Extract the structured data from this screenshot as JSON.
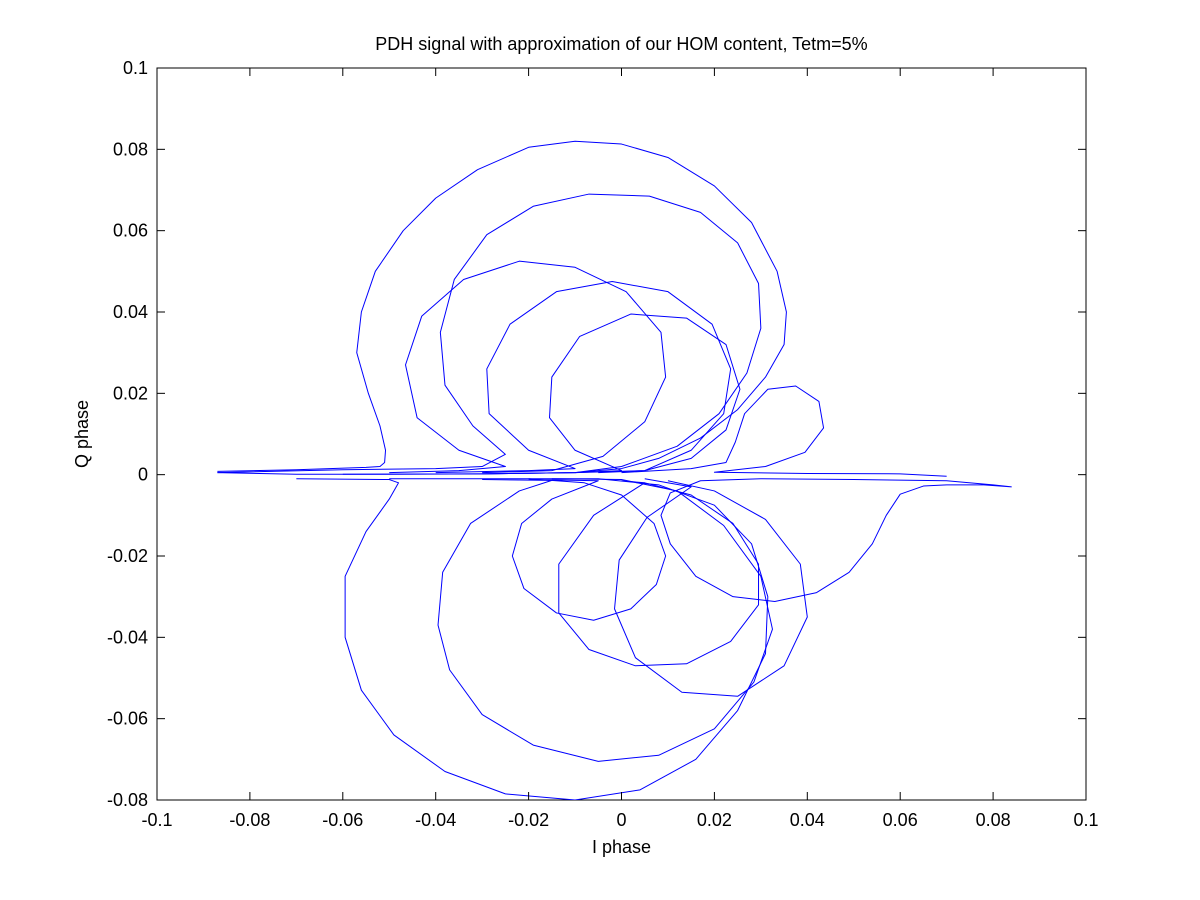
{
  "chart_data": {
    "type": "line",
    "title": "PDH signal with approximation of our HOM content,  Tetm=5%",
    "xlabel": "I phase",
    "ylabel": "Q phase",
    "xlim": [
      -0.1,
      0.1
    ],
    "ylim": [
      -0.08,
      0.1
    ],
    "xticks": [
      -0.1,
      -0.08,
      -0.06,
      -0.04,
      -0.02,
      0,
      0.02,
      0.04,
      0.06,
      0.08,
      0.1
    ],
    "yticks": [
      -0.08,
      -0.06,
      -0.04,
      -0.02,
      0,
      0.02,
      0.04,
      0.06,
      0.08,
      0.1
    ],
    "xtick_labels": [
      "-0.1",
      "-0.08",
      "-0.06",
      "-0.04",
      "-0.02",
      "0",
      "0.02",
      "0.04",
      "0.06",
      "0.08",
      "0.1"
    ],
    "ytick_labels": [
      "-0.08",
      "-0.06",
      "-0.04",
      "-0.02",
      "0",
      "0.02",
      "0.04",
      "0.06",
      "0.08",
      "0.1"
    ],
    "grid": false,
    "legend": "none",
    "line_color": "#0000ff",
    "series": [
      {
        "points": [
          [
            -0.087,
            0.0008
          ],
          [
            -0.07,
            0.0012
          ],
          [
            -0.055,
            0.0018
          ],
          [
            -0.052,
            0.002
          ],
          [
            -0.051,
            0.003
          ],
          [
            -0.0508,
            0.006
          ],
          [
            -0.052,
            0.012
          ],
          [
            -0.0545,
            0.02
          ],
          [
            -0.057,
            0.03
          ],
          [
            -0.056,
            0.04
          ],
          [
            -0.053,
            0.05
          ],
          [
            -0.047,
            0.06
          ],
          [
            -0.04,
            0.068
          ],
          [
            -0.031,
            0.075
          ],
          [
            -0.02,
            0.0805
          ],
          [
            -0.01,
            0.082
          ],
          [
            0.0,
            0.0813
          ],
          [
            0.01,
            0.078
          ],
          [
            0.02,
            0.071
          ],
          [
            0.028,
            0.062
          ],
          [
            0.0335,
            0.05
          ],
          [
            0.0355,
            0.04
          ],
          [
            0.035,
            0.032
          ],
          [
            0.031,
            0.024
          ],
          [
            0.025,
            0.016
          ],
          [
            0.017,
            0.009
          ],
          [
            0.008,
            0.004
          ],
          [
            0.0,
            0.0015
          ],
          [
            -0.01,
            0.0005
          ],
          [
            -0.03,
            0.0002
          ],
          [
            -0.05,
            0.0001
          ],
          [
            -0.07,
            0.0001
          ],
          [
            -0.087,
            0.0005
          ]
        ]
      },
      {
        "points": [
          [
            -0.087,
            0.0005
          ],
          [
            -0.06,
            0.0012
          ],
          [
            -0.04,
            0.0015
          ],
          [
            -0.03,
            0.002
          ],
          [
            -0.025,
            0.005
          ],
          [
            -0.032,
            0.012
          ],
          [
            -0.038,
            0.022
          ],
          [
            -0.039,
            0.035
          ],
          [
            -0.036,
            0.048
          ],
          [
            -0.029,
            0.059
          ],
          [
            -0.019,
            0.066
          ],
          [
            -0.007,
            0.069
          ],
          [
            0.006,
            0.0685
          ],
          [
            0.017,
            0.0645
          ],
          [
            0.025,
            0.057
          ],
          [
            0.0295,
            0.047
          ],
          [
            0.03,
            0.036
          ],
          [
            0.027,
            0.025
          ],
          [
            0.021,
            0.015
          ],
          [
            0.012,
            0.007
          ],
          [
            0.0,
            0.002
          ],
          [
            -0.01,
            0.0005
          ],
          [
            -0.03,
            0.0002
          ],
          [
            -0.06,
            0.0001
          ]
        ]
      },
      {
        "points": [
          [
            -0.05,
            0.0005
          ],
          [
            -0.035,
            0.001
          ],
          [
            -0.025,
            0.002
          ],
          [
            -0.035,
            0.006
          ],
          [
            -0.044,
            0.014
          ],
          [
            -0.0465,
            0.027
          ],
          [
            -0.043,
            0.039
          ],
          [
            -0.034,
            0.048
          ],
          [
            -0.022,
            0.0525
          ],
          [
            -0.01,
            0.051
          ],
          [
            0.001,
            0.045
          ],
          [
            0.0085,
            0.035
          ],
          [
            0.0095,
            0.024
          ],
          [
            0.005,
            0.013
          ],
          [
            -0.004,
            0.0045
          ],
          [
            -0.015,
            0.001
          ],
          [
            -0.03,
            0.0005
          ]
        ]
      },
      {
        "points": [
          [
            -0.04,
            0.0005
          ],
          [
            -0.02,
            0.001
          ],
          [
            -0.01,
            0.0015
          ],
          [
            -0.02,
            0.006
          ],
          [
            -0.0285,
            0.015
          ],
          [
            -0.029,
            0.026
          ],
          [
            -0.024,
            0.037
          ],
          [
            -0.014,
            0.045
          ],
          [
            -0.002,
            0.0475
          ],
          [
            0.01,
            0.045
          ],
          [
            0.0195,
            0.037
          ],
          [
            0.0235,
            0.026
          ],
          [
            0.022,
            0.015
          ],
          [
            0.015,
            0.006
          ],
          [
            0.005,
            0.001
          ],
          [
            -0.01,
            0.0005
          ],
          [
            -0.03,
            0.0002
          ]
        ]
      },
      {
        "points": [
          [
            -0.01,
            0.0005
          ],
          [
            0.0,
            0.001
          ],
          [
            -0.01,
            0.006
          ],
          [
            -0.0155,
            0.014
          ],
          [
            -0.015,
            0.024
          ],
          [
            -0.009,
            0.034
          ],
          [
            0.002,
            0.0395
          ],
          [
            0.014,
            0.0385
          ],
          [
            0.0225,
            0.032
          ],
          [
            0.0255,
            0.021
          ],
          [
            0.0225,
            0.011
          ],
          [
            0.015,
            0.004
          ],
          [
            0.005,
            0.001
          ],
          [
            -0.005,
            0.0005
          ]
        ]
      },
      {
        "points": [
          [
            0.0,
            0.0005
          ],
          [
            0.015,
            0.0015
          ],
          [
            0.0225,
            0.003
          ],
          [
            0.0245,
            0.008
          ],
          [
            0.0265,
            0.015
          ],
          [
            0.0315,
            0.021
          ],
          [
            0.0375,
            0.0218
          ],
          [
            0.0425,
            0.018
          ],
          [
            0.0435,
            0.0115
          ],
          [
            0.0395,
            0.0055
          ],
          [
            0.031,
            0.002
          ],
          [
            0.02,
            0.0006
          ],
          [
            0.04,
            0.0003
          ],
          [
            0.06,
            0.0002
          ],
          [
            0.07,
            -0.0004
          ]
        ]
      },
      {
        "points": [
          [
            0.084,
            -0.003
          ],
          [
            0.078,
            -0.0025
          ],
          [
            0.07,
            -0.0025
          ],
          [
            0.065,
            -0.0028
          ],
          [
            0.06,
            -0.0048
          ],
          [
            0.057,
            -0.01
          ],
          [
            0.054,
            -0.017
          ],
          [
            0.049,
            -0.024
          ],
          [
            0.042,
            -0.029
          ],
          [
            0.033,
            -0.0312
          ],
          [
            0.024,
            -0.03
          ],
          [
            0.016,
            -0.025
          ],
          [
            0.0105,
            -0.017
          ],
          [
            0.0085,
            -0.01
          ],
          [
            0.0105,
            -0.0045
          ],
          [
            0.017,
            -0.0015
          ],
          [
            0.03,
            -0.001
          ],
          [
            0.05,
            -0.0012
          ],
          [
            0.07,
            -0.0015
          ],
          [
            0.08,
            -0.0025
          ],
          [
            0.084,
            -0.003
          ]
        ]
      },
      {
        "points": [
          [
            -0.07,
            -0.001
          ],
          [
            -0.05,
            -0.0012
          ],
          [
            -0.048,
            -0.002
          ],
          [
            -0.05,
            -0.006
          ],
          [
            -0.055,
            -0.014
          ],
          [
            -0.0595,
            -0.025
          ],
          [
            -0.0595,
            -0.04
          ],
          [
            -0.056,
            -0.053
          ],
          [
            -0.049,
            -0.064
          ],
          [
            -0.038,
            -0.073
          ],
          [
            -0.025,
            -0.0785
          ],
          [
            -0.01,
            -0.08
          ],
          [
            0.004,
            -0.0775
          ],
          [
            0.016,
            -0.07
          ],
          [
            0.025,
            -0.058
          ],
          [
            0.031,
            -0.044
          ],
          [
            0.0315,
            -0.03
          ],
          [
            0.028,
            -0.017
          ],
          [
            0.02,
            -0.0075
          ],
          [
            0.008,
            -0.0025
          ],
          [
            -0.005,
            -0.001
          ],
          [
            -0.02,
            -0.001
          ],
          [
            -0.05,
            -0.001
          ]
        ]
      },
      {
        "points": [
          [
            -0.03,
            -0.0012
          ],
          [
            -0.015,
            -0.0014
          ],
          [
            -0.022,
            -0.004
          ],
          [
            -0.0325,
            -0.012
          ],
          [
            -0.0385,
            -0.024
          ],
          [
            -0.0395,
            -0.037
          ],
          [
            -0.037,
            -0.048
          ],
          [
            -0.03,
            -0.059
          ],
          [
            -0.019,
            -0.0665
          ],
          [
            -0.005,
            -0.0705
          ],
          [
            0.008,
            -0.069
          ],
          [
            0.02,
            -0.0625
          ],
          [
            0.0285,
            -0.051
          ],
          [
            0.0325,
            -0.038
          ],
          [
            0.03,
            -0.025
          ],
          [
            0.022,
            -0.0125
          ],
          [
            0.012,
            -0.004
          ],
          [
            0.0,
            -0.0012
          ],
          [
            -0.015,
            -0.001
          ]
        ]
      },
      {
        "points": [
          [
            -0.02,
            -0.0012
          ],
          [
            -0.005,
            -0.0015
          ],
          [
            -0.015,
            -0.006
          ],
          [
            -0.0215,
            -0.012
          ],
          [
            -0.0235,
            -0.02
          ],
          [
            -0.021,
            -0.028
          ],
          [
            -0.014,
            -0.034
          ],
          [
            -0.006,
            -0.0358
          ],
          [
            0.002,
            -0.033
          ],
          [
            0.0075,
            -0.027
          ],
          [
            0.0095,
            -0.02
          ],
          [
            0.007,
            -0.012
          ],
          [
            0.0,
            -0.005
          ],
          [
            -0.008,
            -0.002
          ],
          [
            -0.02,
            -0.001
          ]
        ]
      },
      {
        "points": [
          [
            0.0,
            -0.0015
          ],
          [
            0.005,
            -0.002
          ],
          [
            -0.006,
            -0.01
          ],
          [
            -0.0135,
            -0.022
          ],
          [
            -0.0135,
            -0.034
          ],
          [
            -0.007,
            -0.043
          ],
          [
            0.003,
            -0.047
          ],
          [
            0.014,
            -0.0465
          ],
          [
            0.0235,
            -0.041
          ],
          [
            0.0295,
            -0.032
          ],
          [
            0.0295,
            -0.022
          ],
          [
            0.024,
            -0.012
          ],
          [
            0.015,
            -0.005
          ],
          [
            0.005,
            -0.002
          ]
        ]
      },
      {
        "points": [
          [
            0.005,
            -0.001
          ],
          [
            0.015,
            -0.003
          ],
          [
            0.0055,
            -0.0105
          ],
          [
            -0.0005,
            -0.021
          ],
          [
            -0.0015,
            -0.033
          ],
          [
            0.003,
            -0.045
          ],
          [
            0.013,
            -0.0535
          ],
          [
            0.025,
            -0.0545
          ],
          [
            0.035,
            -0.047
          ],
          [
            0.04,
            -0.035
          ],
          [
            0.0385,
            -0.022
          ],
          [
            0.031,
            -0.011
          ],
          [
            0.02,
            -0.004
          ],
          [
            0.01,
            -0.0015
          ]
        ]
      }
    ]
  }
}
